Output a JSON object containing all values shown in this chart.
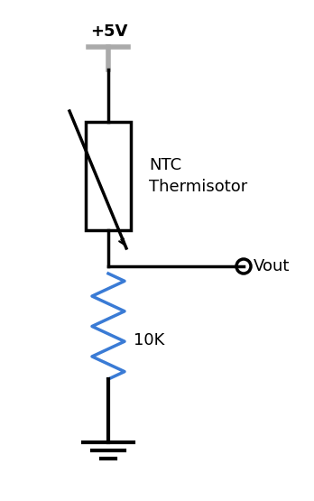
{
  "bg_color": "#ffffff",
  "line_color": "#000000",
  "gray_color": "#aaaaaa",
  "blue_color": "#3a7bd5",
  "vcc_label": "+5V",
  "ntc_label1": "NTC",
  "ntc_label2": "Thermisotor",
  "res_label": "10K",
  "vout_label": "Vout",
  "figsize": [
    3.48,
    5.55
  ],
  "dpi": 100
}
